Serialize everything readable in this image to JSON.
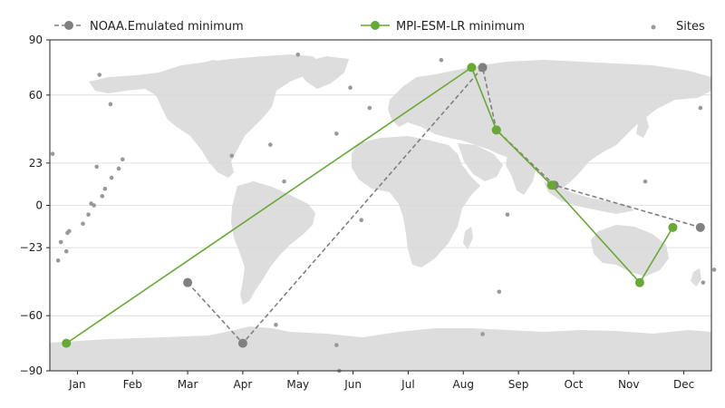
{
  "chart_data": {
    "type": "line",
    "title": "",
    "xlabel": "",
    "ylabel": "",
    "x_axis": {
      "ticks": [
        "Jan",
        "Feb",
        "Mar",
        "Apr",
        "May",
        "Jun",
        "Jul",
        "Aug",
        "Sep",
        "Oct",
        "Nov",
        "Dec"
      ],
      "range_months": [
        0.5,
        12.5
      ]
    },
    "y_axis": {
      "ticks": [
        90,
        60,
        23,
        0,
        -23,
        -60,
        -90
      ],
      "ylim": [
        -90,
        90
      ]
    },
    "grid": "horizontal",
    "background": "world map (land masses in light gray)",
    "legend": {
      "placement": "top, above plot",
      "entries": [
        "NOAA.Emulated minimum",
        "MPI-ESM-LR minimum",
        "Sites"
      ]
    },
    "series": [
      {
        "name": "NOAA.Emulated minimum",
        "style": "dashed",
        "color": "#808080",
        "points": [
          {
            "month": "Mar",
            "x": 3.0,
            "y": -42
          },
          {
            "month": "Apr",
            "x": 4.0,
            "y": -75
          },
          {
            "month": "Aug",
            "x": 8.35,
            "y": 75
          },
          {
            "month": "Aug",
            "x": 8.6,
            "y": 41
          },
          {
            "month": "Sep",
            "x": 9.65,
            "y": 11
          },
          {
            "month": "Dec",
            "x": 12.3,
            "y": -12
          }
        ]
      },
      {
        "name": "MPI-ESM-LR minimum",
        "style": "solid",
        "color": "#66aa33",
        "points": [
          {
            "month": "Jan",
            "x": 0.8,
            "y": -75
          },
          {
            "month": "Aug",
            "x": 8.15,
            "y": 75
          },
          {
            "month": "Aug",
            "x": 8.6,
            "y": 41
          },
          {
            "month": "Sep",
            "x": 9.6,
            "y": 11
          },
          {
            "month": "Nov",
            "x": 11.2,
            "y": -42
          },
          {
            "month": "Nov",
            "x": 11.8,
            "y": -12
          }
        ]
      },
      {
        "name": "Sites",
        "style": "scatter",
        "color": "#999999",
        "points": [
          [
            0.55,
            28
          ],
          [
            0.65,
            -30
          ],
          [
            0.7,
            -20
          ],
          [
            0.8,
            -25
          ],
          [
            0.82,
            -15
          ],
          [
            0.85,
            -14
          ],
          [
            1.1,
            -10
          ],
          [
            1.2,
            -5
          ],
          [
            1.25,
            1
          ],
          [
            1.3,
            0
          ],
          [
            1.35,
            21
          ],
          [
            1.45,
            5
          ],
          [
            1.5,
            9
          ],
          [
            1.62,
            15
          ],
          [
            1.75,
            20
          ],
          [
            1.82,
            25
          ],
          [
            1.4,
            71
          ],
          [
            1.6,
            55
          ],
          [
            3.8,
            27
          ],
          [
            4.5,
            33
          ],
          [
            4.6,
            -65
          ],
          [
            4.75,
            13
          ],
          [
            5.0,
            82
          ],
          [
            5.7,
            -76
          ],
          [
            5.7,
            39
          ],
          [
            5.75,
            -90
          ],
          [
            5.95,
            64
          ],
          [
            6.15,
            -8
          ],
          [
            6.3,
            53
          ],
          [
            7.6,
            79
          ],
          [
            8.35,
            -70
          ],
          [
            8.65,
            -47
          ],
          [
            8.8,
            -5
          ],
          [
            11.3,
            13
          ],
          [
            12.3,
            53
          ],
          [
            12.35,
            -42
          ],
          [
            12.55,
            -35
          ]
        ]
      }
    ]
  }
}
